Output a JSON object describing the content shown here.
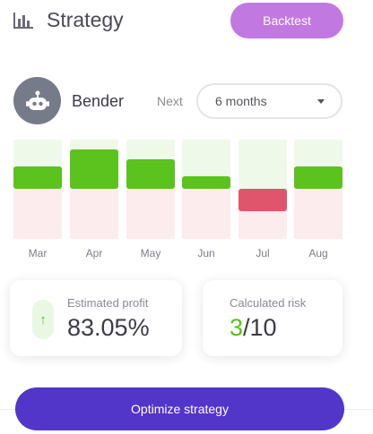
{
  "header": {
    "title": "Strategy",
    "icon": "bar-chart-icon",
    "backtest_label": "Backtest"
  },
  "bot": {
    "name": "Bender",
    "avatar_icon": "robot-icon",
    "next_label": "Next",
    "period_value": "6 months"
  },
  "chart_data": {
    "type": "bar",
    "categories": [
      "Mar",
      "Apr",
      "May",
      "Jun",
      "Jul",
      "Aug"
    ],
    "values": [
      0.45,
      0.8,
      0.6,
      0.25,
      -0.45,
      0.45
    ],
    "ylim": [
      -1,
      1
    ],
    "colors": {
      "positive": "#5cc21e",
      "negative": "#e0556b"
    }
  },
  "profit": {
    "label": "Estimated profit",
    "value": "83.05%",
    "icon": "arrow-up-icon"
  },
  "risk": {
    "label": "Calculated risk",
    "value": "3",
    "suffix": "/10"
  },
  "optimize_label": "Optimize strategy"
}
